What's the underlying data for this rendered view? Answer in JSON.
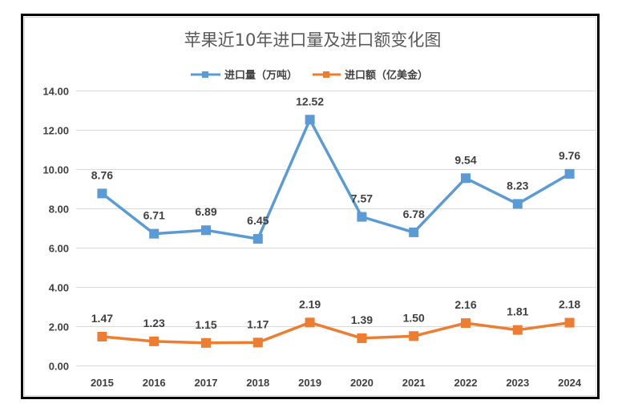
{
  "chart_data": {
    "type": "line",
    "title": "苹果近10年进口量及进口额变化图",
    "categories": [
      "2015",
      "2016",
      "2017",
      "2018",
      "2019",
      "2020",
      "2021",
      "2022",
      "2023",
      "2024"
    ],
    "series": [
      {
        "name": "进口量（万吨）",
        "color": "#5B9BD5",
        "marker": "square",
        "values": [
          8.76,
          6.71,
          6.89,
          6.45,
          12.52,
          7.57,
          6.78,
          9.54,
          8.23,
          9.76
        ],
        "labels": [
          "8.76",
          "6.71",
          "6.89",
          "6.45",
          "12.52",
          "7.57",
          "6.78",
          "9.54",
          "8.23",
          "9.76"
        ]
      },
      {
        "name": "进口额（亿美金）",
        "color": "#ED7D31",
        "marker": "square",
        "values": [
          1.47,
          1.23,
          1.15,
          1.17,
          2.19,
          1.39,
          1.5,
          2.16,
          1.81,
          2.18
        ],
        "labels": [
          "1.47",
          "1.23",
          "1.15",
          "1.17",
          "2.19",
          "1.39",
          "1.50",
          "2.16",
          "1.81",
          "2.18"
        ]
      }
    ],
    "xlabel": "",
    "ylabel": "",
    "ylim": [
      0,
      14
    ],
    "yticks": [
      "0.00",
      "2.00",
      "4.00",
      "6.00",
      "8.00",
      "10.00",
      "12.00",
      "14.00"
    ],
    "ytick_values": [
      0,
      2,
      4,
      6,
      8,
      10,
      12,
      14
    ],
    "grid": true,
    "legend_position": "top-center",
    "data_labels": "above"
  }
}
